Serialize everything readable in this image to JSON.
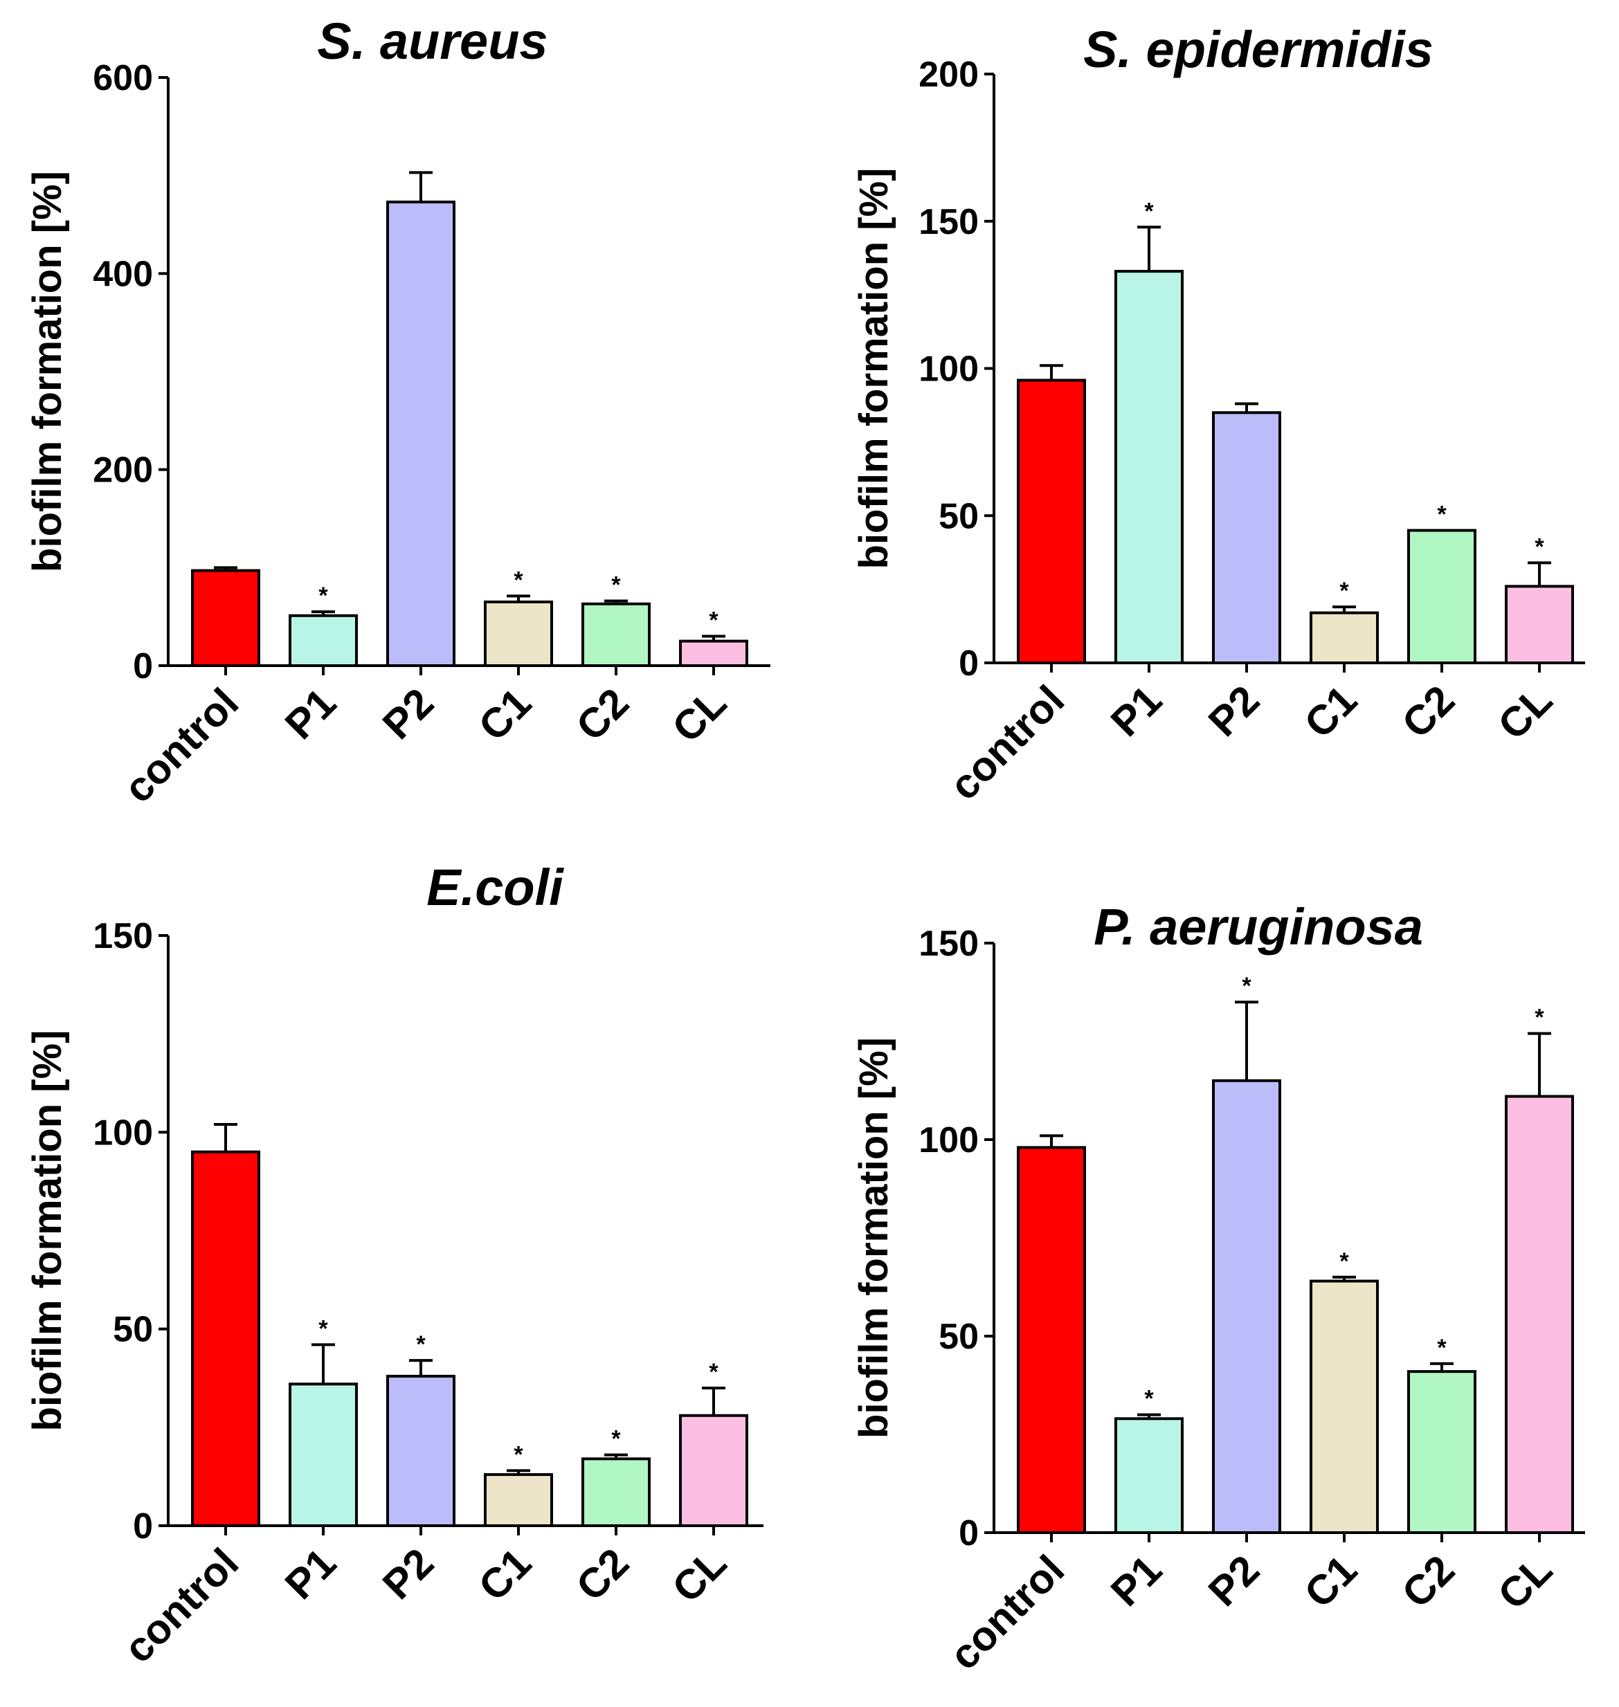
{
  "categories": [
    "control",
    "P1",
    "P2",
    "C1",
    "C2",
    "CL"
  ],
  "bar_colors": [
    "#ff0000",
    "#b8f5e6",
    "#bcbcfb",
    "#ede5c8",
    "#b0f7c4",
    "#fcbfe2"
  ],
  "axis_color": "#000000",
  "significance_marker": "*",
  "chart_data": [
    {
      "type": "bar",
      "title": "S. aureus",
      "xlabel": "",
      "ylabel": "biofilm formation [%]",
      "categories": [
        "control",
        "P1",
        "P2",
        "C1",
        "C2",
        "CL"
      ],
      "values": [
        97,
        51,
        473,
        65,
        63,
        25
      ],
      "errors": [
        3,
        4,
        30,
        6,
        3,
        5
      ],
      "significant": [
        false,
        true,
        false,
        true,
        true,
        true
      ],
      "ylim": [
        0,
        600
      ],
      "yticks": [
        0,
        200,
        400,
        600
      ],
      "ytick_labels": [
        "0",
        "200",
        "400",
        "600"
      ]
    },
    {
      "type": "bar",
      "title": "S. epidermidis",
      "xlabel": "",
      "ylabel": "biofilm formation [%]",
      "categories": [
        "control",
        "P1",
        "P2",
        "C1",
        "C2",
        "CL"
      ],
      "values": [
        96,
        133,
        85,
        17,
        45,
        26
      ],
      "errors": [
        5,
        15,
        3,
        2,
        0,
        8
      ],
      "significant": [
        false,
        true,
        false,
        true,
        true,
        true
      ],
      "ylim": [
        0,
        200
      ],
      "yticks": [
        0,
        50,
        100,
        150,
        200
      ],
      "ytick_labels": [
        "0",
        "50",
        "100",
        "150",
        "200"
      ]
    },
    {
      "type": "bar",
      "title": "E.coli",
      "xlabel": "",
      "ylabel": "biofilm formation [%]",
      "categories": [
        "control",
        "P1",
        "P2",
        "C1",
        "C2",
        "CL"
      ],
      "values": [
        95,
        36,
        38,
        13,
        17,
        28
      ],
      "errors": [
        7,
        10,
        4,
        1,
        1,
        7
      ],
      "significant": [
        false,
        true,
        true,
        true,
        true,
        true
      ],
      "ylim": [
        0,
        150
      ],
      "yticks": [
        0,
        50,
        100,
        150
      ],
      "ytick_labels": [
        "0",
        "50",
        "100",
        "150"
      ]
    },
    {
      "type": "bar",
      "title": "P. aeruginosa",
      "xlabel": "",
      "ylabel": "biofilm formation [%]",
      "categories": [
        "control",
        "P1",
        "P2",
        "C1",
        "C2",
        "CL"
      ],
      "values": [
        98,
        29,
        115,
        64,
        41,
        111
      ],
      "errors": [
        3,
        1,
        20,
        1,
        2,
        16
      ],
      "significant": [
        false,
        true,
        true,
        true,
        true,
        true
      ],
      "ylim": [
        0,
        150
      ],
      "yticks": [
        0,
        50,
        100,
        150
      ],
      "ytick_labels": [
        "0",
        "50",
        "100",
        "150"
      ]
    }
  ]
}
